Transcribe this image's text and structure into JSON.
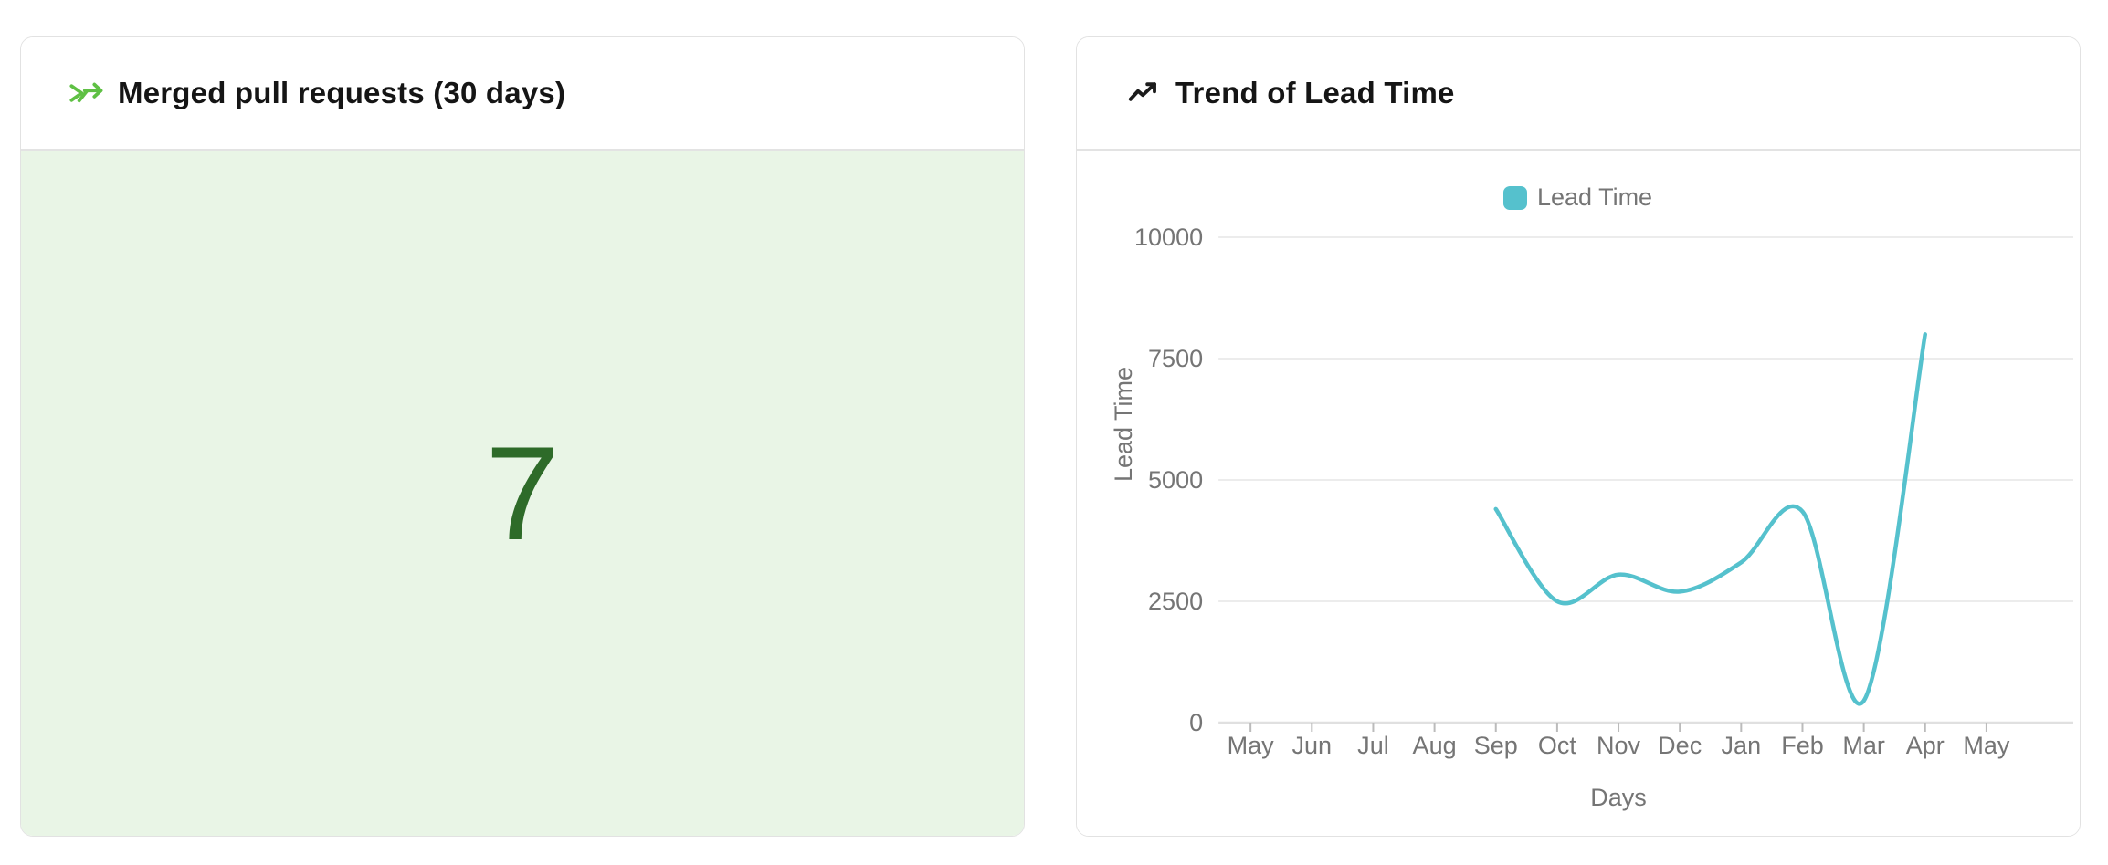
{
  "cards": {
    "merged_prs": {
      "title": "Merged pull requests (30 days)",
      "value": "7",
      "accent_color": "#5fc044",
      "value_color": "#2e6b29",
      "bg_color": "#e9f5e6"
    },
    "lead_time_trend": {
      "title": "Trend of Lead Time",
      "legend_label": "Lead Time"
    }
  },
  "chart_data": {
    "type": "line",
    "title": "Trend of Lead Time",
    "x": [
      "May",
      "Jun",
      "Jul",
      "Aug",
      "Sep",
      "Oct",
      "Nov",
      "Dec",
      "Jan",
      "Feb",
      "Mar",
      "Apr",
      "May"
    ],
    "series": [
      {
        "name": "Lead Time",
        "color": "#55c1cd",
        "values": [
          null,
          null,
          null,
          null,
          4400,
          2500,
          3050,
          2700,
          3300,
          4350,
          450,
          8000,
          null
        ]
      }
    ],
    "xlabel": "Days",
    "ylabel": "Lead Time",
    "ylim": [
      0,
      10000
    ],
    "yticks": [
      0,
      2500,
      5000,
      7500,
      10000
    ],
    "grid": true,
    "smooth": true,
    "legend_position": "top",
    "axis_label_color": "#757575",
    "gridline_color": "#ececec",
    "axisline_color": "#e0e0e0"
  }
}
